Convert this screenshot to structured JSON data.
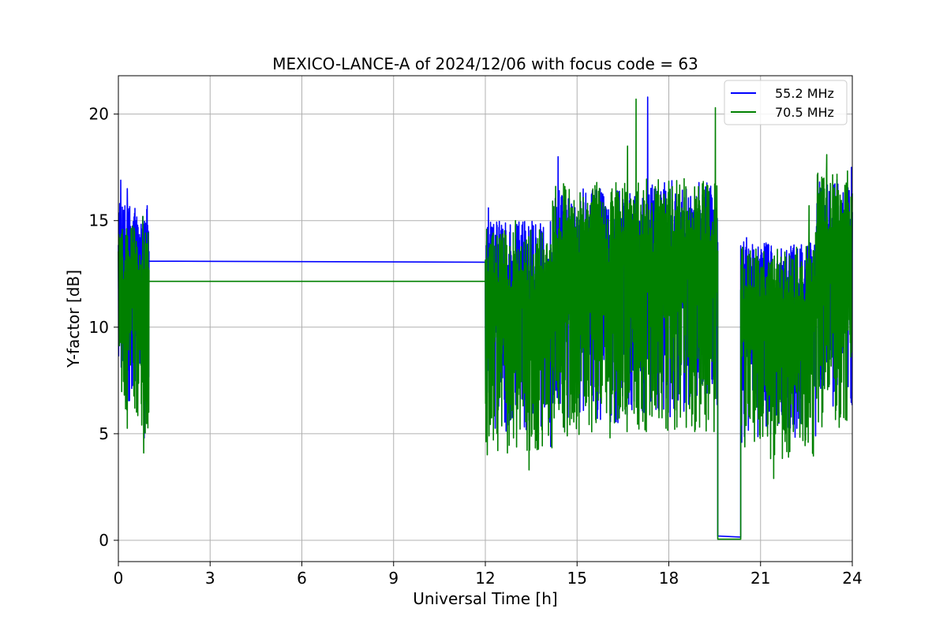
{
  "chart_data": {
    "type": "line",
    "title": "MEXICO-LANCE-A of 2024/12/06 with focus code = 63",
    "xlabel": "Universal Time [h]",
    "ylabel": "Y-factor [dB]",
    "xlim": [
      0,
      24
    ],
    "ylim": [
      -1,
      21.8
    ],
    "xticks": [
      0,
      3,
      6,
      9,
      12,
      15,
      18,
      21,
      24
    ],
    "yticks": [
      0,
      5,
      10,
      15,
      20
    ],
    "grid": true,
    "legend_position": "top-right",
    "series": [
      {
        "name": "55.2 MHz",
        "color": "#0000ff",
        "segments": [
          {
            "x_start": 0.0,
            "x_end": 1.0,
            "upper": 15.8,
            "lower": 6.5,
            "spikes_high": [
              16.9,
              16.5
            ],
            "spikes_low": [
              4.8
            ]
          },
          {
            "x_start": 1.0,
            "x_end": 12.0,
            "flat": [
              13.1,
              13.05
            ]
          },
          {
            "x_start": 12.0,
            "x_end": 14.2,
            "upper": 15.0,
            "lower": 5.0,
            "spikes_high": [
              15.6
            ],
            "spikes_low": [
              4.4
            ]
          },
          {
            "x_start": 14.2,
            "x_end": 17.0,
            "upper": 16.5,
            "lower": 5.5,
            "spikes_high": [
              18.0
            ],
            "spikes_low": [
              5.3
            ]
          },
          {
            "x_start": 17.0,
            "x_end": 19.6,
            "upper": 16.9,
            "lower": 6.0,
            "spikes_high": [
              20.8
            ],
            "spikes_low": [
              5.8
            ]
          },
          {
            "x_start": 19.6,
            "x_end": 20.35,
            "flat": [
              0.2,
              0.15
            ]
          },
          {
            "x_start": 20.35,
            "x_end": 22.8,
            "upper": 14.0,
            "lower": 4.8,
            "spikes_high": [
              14.2
            ],
            "spikes_low": [
              4.6
            ]
          },
          {
            "x_start": 22.8,
            "x_end": 24.0,
            "upper": 17.0,
            "lower": 6.2,
            "spikes_high": [
              17.5
            ],
            "spikes_low": [
              6.3
            ]
          }
        ]
      },
      {
        "name": "70.5 MHz",
        "color": "#008000",
        "segments": [
          {
            "x_start": 0.0,
            "x_end": 1.0,
            "upper": 14.8,
            "lower": 5.0,
            "spikes_high": [
              15.2
            ],
            "spikes_low": [
              4.1
            ]
          },
          {
            "x_start": 1.0,
            "x_end": 12.0,
            "flat": [
              12.15,
              12.15
            ]
          },
          {
            "x_start": 12.0,
            "x_end": 14.2,
            "upper": 14.6,
            "lower": 4.0,
            "spikes_high": [
              15.0
            ],
            "spikes_low": [
              3.3
            ]
          },
          {
            "x_start": 14.2,
            "x_end": 17.0,
            "upper": 16.8,
            "lower": 4.8,
            "spikes_high": [
              18.5,
              20.7
            ],
            "spikes_low": [
              4.9
            ]
          },
          {
            "x_start": 17.0,
            "x_end": 19.6,
            "upper": 17.0,
            "lower": 5.0,
            "spikes_high": [
              20.3
            ],
            "spikes_low": [
              5.3
            ]
          },
          {
            "x_start": 19.6,
            "x_end": 20.35,
            "flat": [
              0.05,
              0.05
            ]
          },
          {
            "x_start": 20.35,
            "x_end": 22.8,
            "upper": 13.8,
            "lower": 3.8,
            "spikes_high": [
              15.7
            ],
            "spikes_low": [
              2.9
            ]
          },
          {
            "x_start": 22.8,
            "x_end": 24.0,
            "upper": 17.5,
            "lower": 5.3,
            "spikes_high": [
              18.1
            ],
            "spikes_low": [
              5.3
            ]
          }
        ]
      }
    ]
  }
}
